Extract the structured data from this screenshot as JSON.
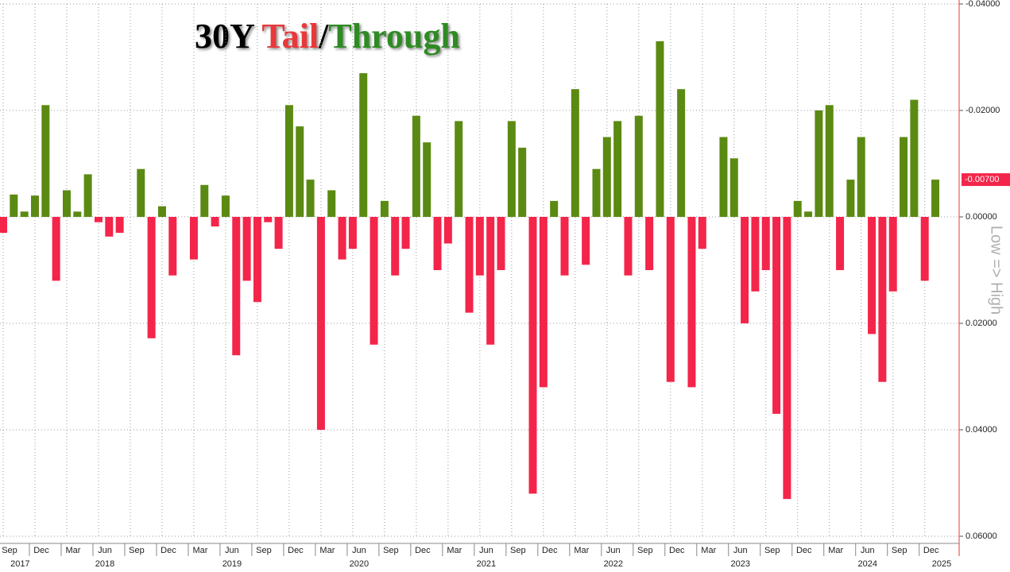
{
  "chart_data": {
    "type": "bar",
    "title_parts": [
      {
        "text": "30Y ",
        "color": "#000000"
      },
      {
        "text": "Tail",
        "color": "#e8383b"
      },
      {
        "text": "/",
        "color": "#000000"
      },
      {
        "text": "Through",
        "color": "#2e8b23"
      }
    ],
    "y_axis_label": "Low => High",
    "categories": [
      "Sep",
      null,
      null,
      "Dec",
      null,
      null,
      "Mar",
      null,
      null,
      "Jun",
      null,
      null,
      "Sep",
      null,
      null,
      "Dec",
      null,
      null,
      "Mar",
      null,
      null,
      "Jun",
      null,
      null,
      "Sep",
      null,
      null,
      "Dec",
      null,
      null,
      "Mar",
      null,
      null,
      "Jun",
      null,
      null,
      "Sep",
      null,
      null,
      "Dec",
      null,
      null,
      "Mar",
      null,
      null,
      "Jun",
      null,
      null,
      "Sep",
      null,
      null,
      "Dec",
      null,
      null,
      "Mar",
      null,
      null,
      "Jun",
      null,
      null,
      "Sep",
      null,
      null,
      "Dec",
      null,
      null,
      "Mar",
      null,
      null,
      "Jun",
      null,
      null,
      "Sep",
      null,
      null,
      "Dec",
      null,
      null,
      "Mar",
      null,
      null,
      "Jun",
      null,
      null,
      "Sep",
      null,
      null,
      "Dec",
      null
    ],
    "year_labels": [
      null,
      "2017",
      null,
      null,
      null,
      null,
      null,
      null,
      null,
      "2018",
      null,
      null,
      null,
      null,
      null,
      null,
      null,
      null,
      null,
      null,
      null,
      "2019",
      null,
      null,
      null,
      null,
      null,
      null,
      null,
      null,
      null,
      null,
      null,
      "2020",
      null,
      null,
      null,
      null,
      null,
      null,
      null,
      null,
      null,
      null,
      null,
      "2021",
      null,
      null,
      null,
      null,
      null,
      null,
      null,
      null,
      null,
      null,
      null,
      "2022",
      null,
      null,
      null,
      null,
      null,
      null,
      null,
      null,
      null,
      null,
      null,
      "2023",
      null,
      null,
      null,
      null,
      null,
      null,
      null,
      null,
      null,
      null,
      null,
      "2024",
      null,
      null,
      null,
      null,
      null,
      null,
      "2025"
    ],
    "values": [
      0.003,
      -0.0042,
      -0.001,
      -0.004,
      -0.021,
      0.012,
      -0.005,
      -0.001,
      -0.008,
      0.001,
      0.0037,
      0.003,
      0,
      -0.009,
      0.0228,
      -0.002,
      0.011,
      0,
      0.008,
      -0.006,
      0.0018,
      -0.004,
      0.026,
      0.012,
      0.016,
      0.001,
      0.006,
      -0.021,
      -0.017,
      -0.007,
      0.04,
      -0.005,
      0.008,
      0.006,
      -0.027,
      0.024,
      -0.003,
      0.011,
      0.006,
      -0.019,
      -0.014,
      0.01,
      0.005,
      -0.018,
      0.018,
      0.011,
      0.024,
      0.01,
      -0.018,
      -0.013,
      0.052,
      0.032,
      -0.003,
      0.011,
      -0.024,
      0.009,
      -0.009,
      -0.015,
      -0.018,
      0.011,
      -0.019,
      0.01,
      -0.033,
      0.031,
      -0.024,
      0.032,
      0.006,
      0,
      -0.015,
      -0.011,
      0.02,
      0.014,
      0.01,
      0.037,
      0.053,
      -0.003,
      -0.001,
      -0.02,
      -0.021,
      0.01,
      -0.007,
      -0.015,
      0.022,
      0.031,
      0.014,
      -0.015,
      -0.022,
      0.012,
      -0.007
    ],
    "positive_color": "#f4254a",
    "negative_color": "#5b8a12",
    "ylim": [
      -0.04,
      0.06
    ],
    "y_inverted": true,
    "yticks": [
      {
        "value": -0.04,
        "label": "-0.04000"
      },
      {
        "value": -0.02,
        "label": "-0.02000"
      },
      {
        "value": 0,
        "label": "0.00000"
      },
      {
        "value": 0.02,
        "label": "0.02000"
      },
      {
        "value": 0.04,
        "label": "0.04000"
      },
      {
        "value": 0.06,
        "label": "0.06000"
      }
    ],
    "last_value": {
      "value": -0.007,
      "label": "-0.00700"
    },
    "grid": true
  }
}
